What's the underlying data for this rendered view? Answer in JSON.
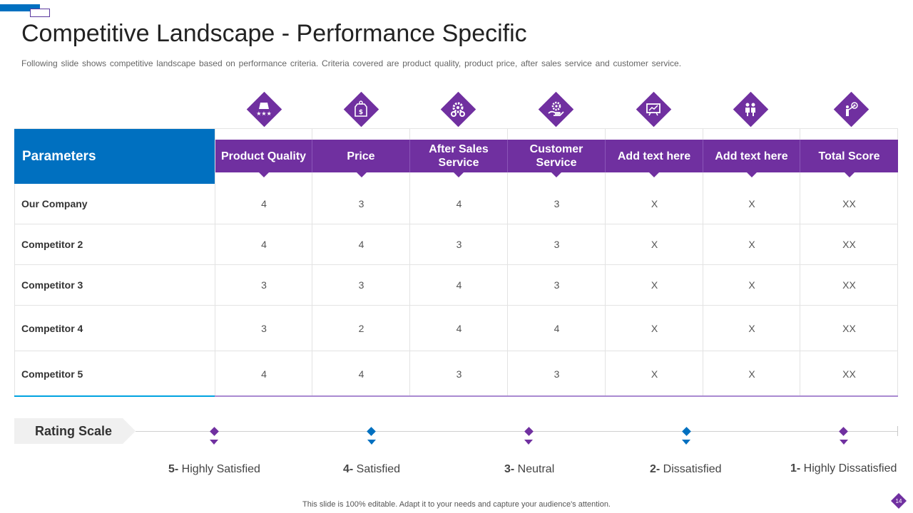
{
  "title": "Competitive Landscape - Performance Specific",
  "subtitle": "Following slide shows competitive landscape based on performance criteria. Criteria covered are product quality, product price, after sales service and customer service.",
  "table": {
    "param_header": "Parameters",
    "columns": [
      {
        "label": "Product Quality",
        "icon": "product-quality-icon"
      },
      {
        "label": "Price",
        "icon": "price-tag-icon"
      },
      {
        "label": "After Sales Service",
        "icon": "gears-icon"
      },
      {
        "label": "Customer Service",
        "icon": "hand-gear-icon"
      },
      {
        "label": "Add text here",
        "icon": "presentation-board-icon"
      },
      {
        "label": "Add text here",
        "icon": "people-meeting-icon"
      },
      {
        "label": "Total Score",
        "icon": "target-achievement-icon"
      }
    ],
    "rows": [
      {
        "name": "Our Company",
        "values": [
          "4",
          "3",
          "4",
          "3",
          "X",
          "X",
          "XX"
        ]
      },
      {
        "name": "Competitor 2",
        "values": [
          "4",
          "4",
          "3",
          "3",
          "X",
          "X",
          "XX"
        ]
      },
      {
        "name": "Competitor 3",
        "values": [
          "3",
          "3",
          "4",
          "3",
          "X",
          "X",
          "XX"
        ]
      },
      {
        "name": "Competitor 4",
        "values": [
          "3",
          "2",
          "4",
          "4",
          "X",
          "X",
          "XX"
        ]
      },
      {
        "name": "Competitor 5",
        "values": [
          "4",
          "4",
          "3",
          "3",
          "X",
          "X",
          "XX"
        ]
      }
    ]
  },
  "rating": {
    "title": "Rating Scale",
    "scale": [
      {
        "num": "5-",
        "text": " Highly Satisfied",
        "color": "#7030a0"
      },
      {
        "num": "4-",
        "text": " Satisfied",
        "color": "#0070c0"
      },
      {
        "num": "3-",
        "text": " Neutral",
        "color": "#7030a0"
      },
      {
        "num": "2-",
        "text": " Dissatisfied",
        "color": "#0070c0"
      },
      {
        "num": "1-",
        "text": " Highly Dissatisfied",
        "color": "#7030a0"
      }
    ]
  },
  "footer": "This slide is 100% editable. Adapt it to your needs and capture your audience's attention.",
  "page_number": "14",
  "colors": {
    "purple": "#7030a0",
    "blue": "#0070c0"
  }
}
